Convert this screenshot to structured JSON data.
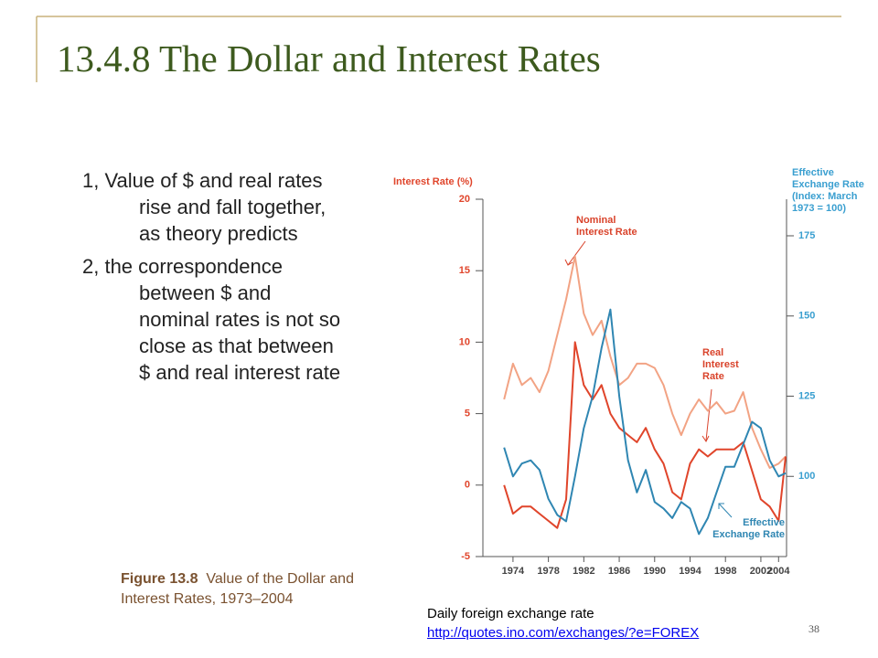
{
  "slide": {
    "title": "13.4.8 The Dollar and Interest Rates",
    "bullets": [
      "1, Value of $ and real rates rise and fall together, as theory predicts",
      "2, the correspondence between $ and nominal rates is not so close as that between $ and real interest rate"
    ],
    "caption": {
      "label": "Figure 13.8",
      "text": "Value of the Dollar and Interest Rates, 1973–2004"
    },
    "note": "Daily foreign exchange rate",
    "link": "http://quotes.ino.com/exchanges/?e=FOREX",
    "page_number": "38"
  },
  "chart_data": {
    "type": "line",
    "ylabel": "Interest Rate (%)",
    "y2label": "Effective Exchange Rate (Index: March 1973 = 100)",
    "x": [
      1973,
      1974,
      1975,
      1976,
      1977,
      1978,
      1979,
      1980,
      1981,
      1982,
      1983,
      1984,
      1985,
      1986,
      1987,
      1988,
      1989,
      1990,
      1991,
      1992,
      1993,
      1994,
      1995,
      1996,
      1997,
      1998,
      1999,
      2000,
      2001,
      2002,
      2003,
      2004,
      2004.8
    ],
    "series": [
      {
        "name": "Nominal Interest Rate",
        "color": "#f2a384",
        "values": [
          6,
          8.5,
          7,
          7.5,
          6.5,
          8,
          10.5,
          13,
          16,
          12,
          10.5,
          11.5,
          9,
          7,
          7.5,
          8.5,
          8.5,
          8.2,
          7,
          5,
          3.5,
          5,
          6,
          5.2,
          5.8,
          5,
          5.2,
          6.5,
          4,
          2.5,
          1.2,
          1.5,
          2
        ]
      },
      {
        "name": "Real Interest Rate",
        "color": "#e0452b",
        "values": [
          0,
          -2,
          -1.5,
          -1.5,
          -2,
          -2.5,
          -3,
          -1,
          10,
          7,
          6,
          7,
          5,
          4,
          3.5,
          3,
          4,
          2.5,
          1.5,
          -0.5,
          -1,
          1.5,
          2.5,
          2,
          2.5,
          2.5,
          2.5,
          3,
          1,
          -1,
          -1.5,
          -2.5,
          2
        ]
      },
      {
        "name": "Effective Exchange Rate",
        "color": "#2f86b2",
        "axis": "y2",
        "values": [
          109,
          100,
          104,
          105,
          102,
          93,
          88,
          86,
          100,
          115,
          125,
          140,
          152,
          125,
          105,
          95,
          102,
          92,
          90,
          87,
          92,
          90,
          82,
          87,
          95,
          103,
          103,
          110,
          117,
          115,
          105,
          100,
          101
        ]
      }
    ],
    "xlim": [
      1970.6,
      2004.9
    ],
    "xticks": [
      1974,
      1978,
      1982,
      1986,
      1990,
      1994,
      1998,
      2002,
      2004
    ],
    "ylim": [
      -5,
      20
    ],
    "yticks": [
      -5,
      0,
      5,
      10,
      15,
      20
    ],
    "y2lim": [
      75,
      186.4
    ],
    "y2ticks": [
      100,
      125,
      150,
      175
    ]
  }
}
